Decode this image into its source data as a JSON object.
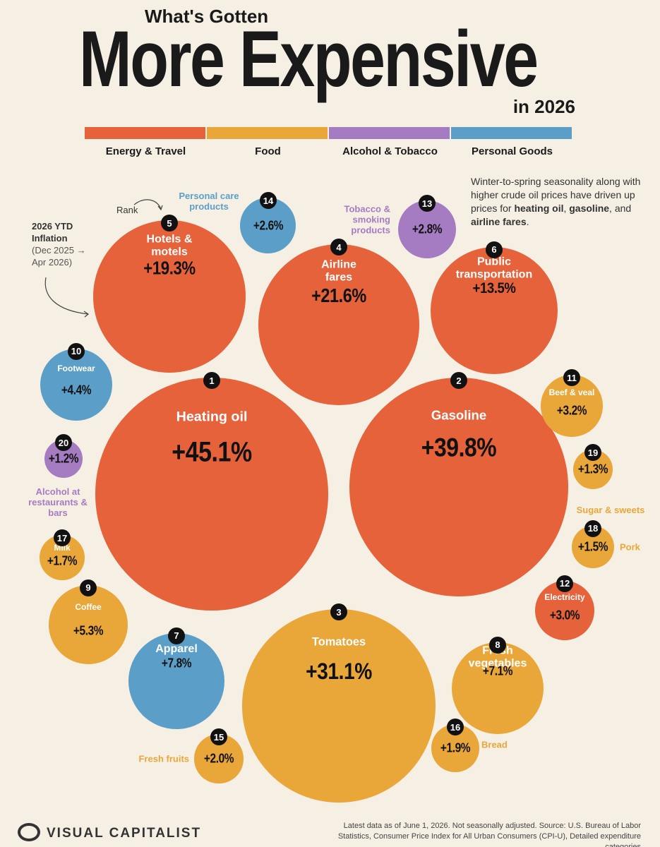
{
  "chart_data": {
    "type": "bubble",
    "title_top": "What's Gotten",
    "title": "More Expensive",
    "title_bottom": "in 2026",
    "series": [
      {
        "name": "Energy & Travel",
        "color": "#e5623a",
        "categories": [
          "Heating oil",
          "Gasoline",
          "Airline fares",
          "Hotels & motels",
          "Public transportation",
          "Electricity"
        ],
        "ranks": [
          1,
          2,
          4,
          5,
          6,
          12
        ],
        "values": [
          45.1,
          39.8,
          21.6,
          19.3,
          13.5,
          3.0
        ],
        "value_labels": [
          "+45.1%",
          "+39.8%",
          "+21.6%",
          "+19.3%",
          "+13.5%",
          "+3.0%"
        ]
      },
      {
        "name": "Food",
        "color": "#e9a73a",
        "categories": [
          "Tomatoes",
          "Fresh vegetables",
          "Coffee",
          "Beef & veal",
          "Fresh fruits",
          "Bread",
          "Milk",
          "Pork",
          "Sugar & sweets"
        ],
        "ranks": [
          3,
          8,
          9,
          11,
          15,
          16,
          17,
          18,
          19
        ],
        "values": [
          31.1,
          7.1,
          5.3,
          3.2,
          2.0,
          1.9,
          1.7,
          1.5,
          1.3
        ],
        "value_labels": [
          "+31.1%",
          "+7.1%",
          "+5.3%",
          "+3.2%",
          "+2.0%",
          "+1.9%",
          "+1.7%",
          "+1.5%",
          "+1.3%"
        ]
      },
      {
        "name": "Alcohol & Tobacco",
        "color": "#a57cc2",
        "categories": [
          "Tobacco & smoking products",
          "Alcohol at restaurants & bars"
        ],
        "ranks": [
          13,
          20
        ],
        "values": [
          2.8,
          1.2
        ],
        "value_labels": [
          "+2.8%",
          "+1.2%"
        ]
      },
      {
        "name": "Personal Goods",
        "color": "#5b9fc9",
        "categories": [
          "Apparel",
          "Footwear",
          "Personal care products"
        ],
        "ranks": [
          7,
          10,
          14
        ],
        "values": [
          7.8,
          4.4,
          2.6
        ],
        "value_labels": [
          "+7.8%",
          "+4.4%",
          "+2.6%"
        ]
      }
    ],
    "annotations": {
      "rank": "Rank",
      "measure": "2026 YTD Inflation",
      "period": "(Dec 2025 → Apr 2026)"
    },
    "note": [
      {
        "text": "Winter-to-spring seasonality along with higher crude oil prices have driven up prices for "
      },
      {
        "text": "heating oil",
        "bold": true
      },
      {
        "text": ", "
      },
      {
        "text": "gasoline",
        "bold": true
      },
      {
        "text": ", and "
      },
      {
        "text": "airline fares",
        "bold": true
      },
      {
        "text": "."
      }
    ],
    "source": "Latest data as of June 1, 2026. Not seasonally adjusted. Source: U.S. Bureau of Labor Statistics, Consumer Price Index for All Urban Consumers (CPI-U), Detailed expenditure categories",
    "brand": "VISUAL CAPITALIST"
  }
}
